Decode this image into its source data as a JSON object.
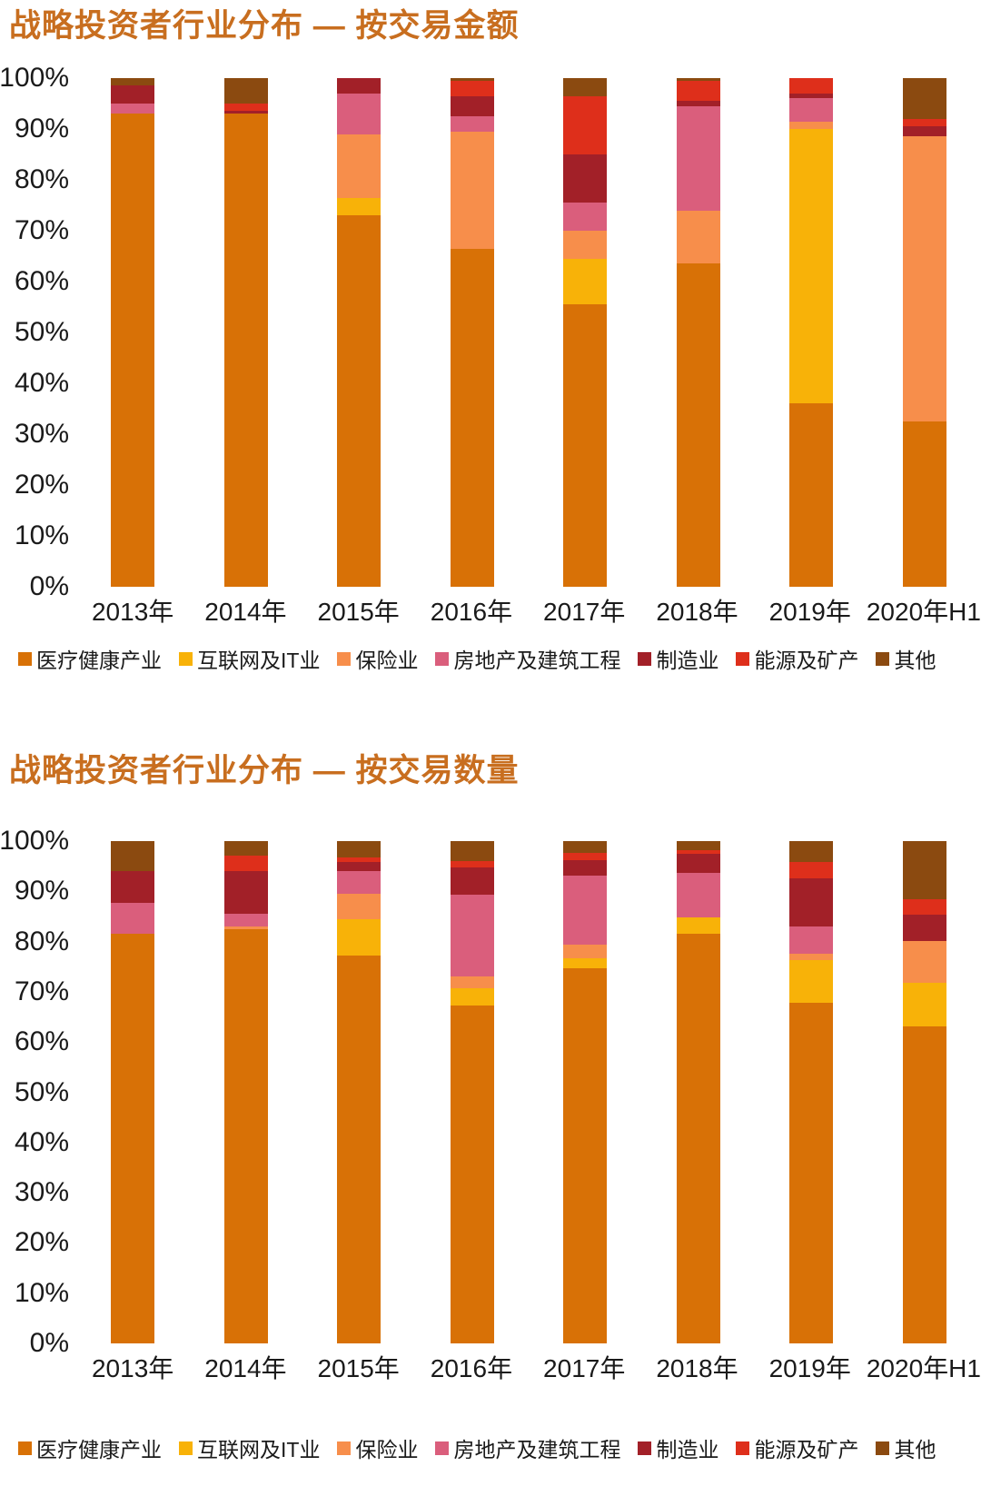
{
  "title_color": "#C86E1F",
  "chart_data": [
    {
      "type": "stacked-bar-100",
      "title": "战略投资者行业分布 — 按交易金额",
      "unit": "percent",
      "ylim": [
        0,
        100
      ],
      "grid": false,
      "legend_position": "bottom",
      "y_ticks": [
        "100%",
        "90%",
        "80%",
        "70%",
        "60%",
        "50%",
        "40%",
        "30%",
        "20%",
        "10%",
        "0%"
      ],
      "categories": [
        "2013年",
        "2014年",
        "2015年",
        "2016年",
        "2017年",
        "2018年",
        "2019年",
        "2020年H1"
      ],
      "series": [
        {
          "name": "医疗健康产业",
          "color": "#D87106",
          "values": [
            93,
            93,
            73,
            66.5,
            55.5,
            63.5,
            36,
            32.5
          ]
        },
        {
          "name": "互联网及IT业",
          "color": "#F8B208",
          "values": [
            0,
            0,
            3.5,
            0,
            9,
            0,
            54,
            0
          ]
        },
        {
          "name": "保险业",
          "color": "#F78E4B",
          "values": [
            0,
            0,
            12.5,
            23,
            5.5,
            10.5,
            1.5,
            56
          ]
        },
        {
          "name": "房地产及建筑工程",
          "color": "#DA5E7C",
          "values": [
            2,
            0,
            8,
            3,
            5.5,
            20.5,
            4.5,
            0
          ]
        },
        {
          "name": "制造业",
          "color": "#A22028",
          "values": [
            3.5,
            0.5,
            3,
            4,
            9.5,
            1,
            1,
            2
          ]
        },
        {
          "name": "能源及矿产",
          "color": "#DE2F1B",
          "values": [
            0,
            1.5,
            0,
            3,
            11.5,
            4,
            3,
            1.5
          ]
        },
        {
          "name": "其他",
          "color": "#8B4A10",
          "values": [
            1.5,
            5,
            0,
            0.5,
            3.5,
            0.5,
            0,
            8
          ]
        }
      ]
    },
    {
      "type": "stacked-bar-100",
      "title": "战略投资者行业分布 — 按交易数量",
      "unit": "percent",
      "ylim": [
        0,
        100
      ],
      "grid": false,
      "legend_position": "bottom",
      "y_ticks": [
        "100%",
        "90%",
        "80%",
        "70%",
        "60%",
        "50%",
        "40%",
        "30%",
        "20%",
        "10%",
        "0%"
      ],
      "categories": [
        "2013年",
        "2014年",
        "2015年",
        "2016年",
        "2017年",
        "2018年",
        "2019年",
        "2020年H1"
      ],
      "series": [
        {
          "name": "医疗健康产业",
          "color": "#D87106",
          "values": [
            81.5,
            82.5,
            77.3,
            67.3,
            74.6,
            81.6,
            67.8,
            63.2
          ]
        },
        {
          "name": "互联网及IT业",
          "color": "#F8B208",
          "values": [
            0,
            0,
            7.2,
            3.4,
            2,
            3.3,
            8.5,
            8.6
          ]
        },
        {
          "name": "保险业",
          "color": "#F78E4B",
          "values": [
            0,
            0.5,
            5.1,
            2.3,
            2.8,
            0,
            1.2,
            8.4
          ]
        },
        {
          "name": "房地产及建筑工程",
          "color": "#DA5E7C",
          "values": [
            6.2,
            2.5,
            4.5,
            16.3,
            13.8,
            8.8,
            5.6,
            0
          ]
        },
        {
          "name": "制造业",
          "color": "#A22028",
          "values": [
            6.3,
            8.5,
            1.7,
            5.4,
            3,
            3.7,
            9.5,
            5.1
          ]
        },
        {
          "name": "能源及矿产",
          "color": "#DE2F1B",
          "values": [
            0,
            3.1,
            1,
            1.3,
            1.4,
            0.8,
            3.2,
            3.2
          ]
        },
        {
          "name": "其他",
          "color": "#8B4A10",
          "values": [
            6,
            2.9,
            3.2,
            4,
            2.4,
            1.8,
            4.2,
            11.5
          ]
        }
      ]
    }
  ]
}
